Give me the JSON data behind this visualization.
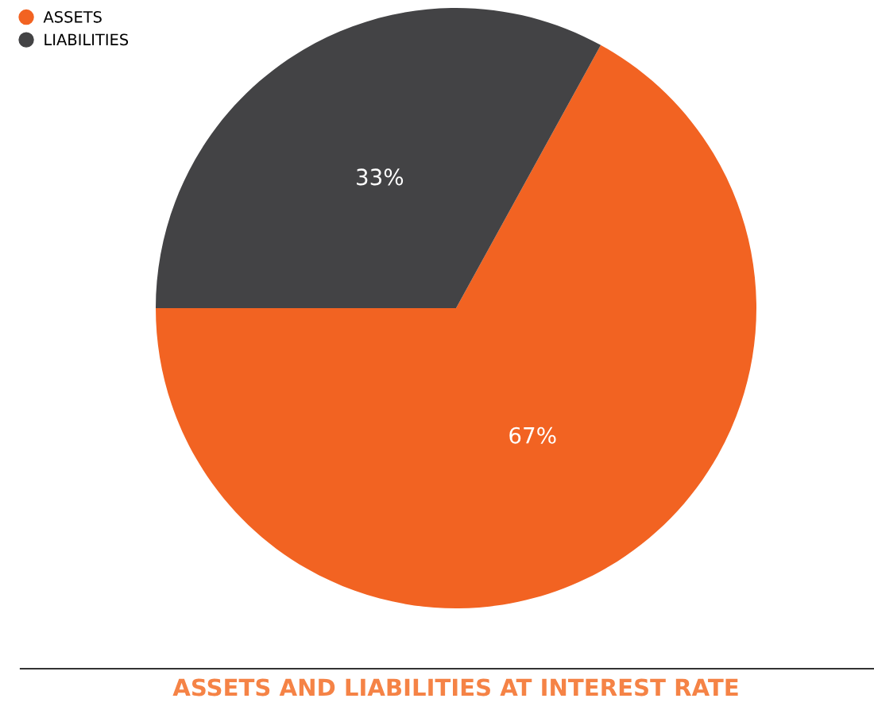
{
  "chart_data": {
    "type": "pie",
    "title": "ASSETS AND LIABILITIES AT INTEREST RATE",
    "categories": [
      "ASSETS",
      "LIABILITIES"
    ],
    "values": [
      67,
      33
    ],
    "colors": [
      "#f26322",
      "#434345"
    ],
    "value_labels": [
      "67%",
      "33%"
    ],
    "legend": "top left"
  }
}
